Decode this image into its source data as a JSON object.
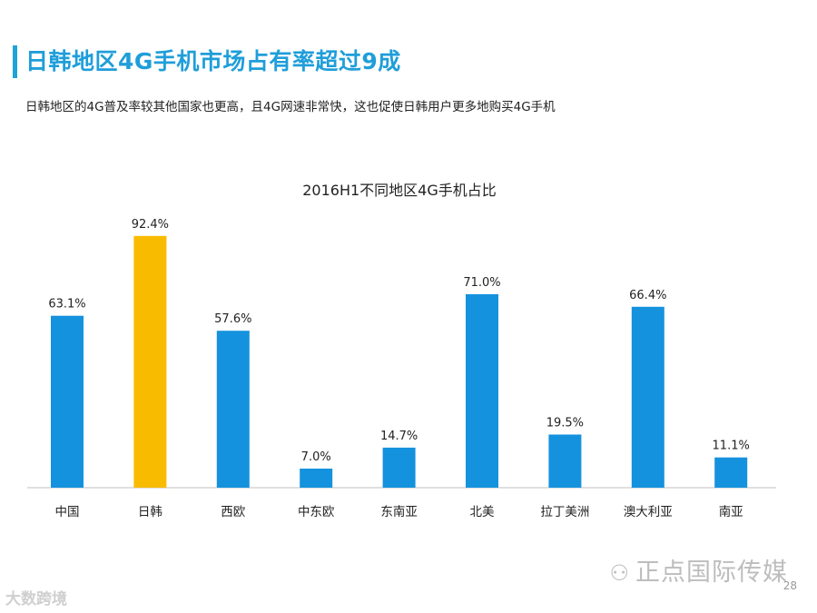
{
  "header": {
    "title": "日韩地区4G手机市场占有率超过9成",
    "subtitle": "日韩地区的4G普及率较其他国家也更高，且4G网速非常快，这也促使日韩用户更多地购买4G手机"
  },
  "chart_data": {
    "type": "bar",
    "title": "2016H1不同地区4G手机占比",
    "categories": [
      "中国",
      "日韩",
      "西欧",
      "中东欧",
      "东南亚",
      "北美",
      "拉丁美洲",
      "澳大利亚",
      "南亚"
    ],
    "values": [
      63.1,
      92.4,
      57.6,
      7.0,
      14.7,
      71.0,
      19.5,
      66.4,
      11.1
    ],
    "value_labels": [
      "63.1%",
      "92.4%",
      "57.6%",
      "7.0%",
      "14.7%",
      "71.0%",
      "19.5%",
      "66.4%",
      "11.1%"
    ],
    "highlight_index": 1,
    "ylim": [
      0,
      100
    ],
    "xlabel": "",
    "ylabel": "",
    "grid": false,
    "colors": {
      "default": "#1592dd",
      "highlight": "#f9bb00",
      "axis": "#bfbfbf",
      "text": "#222222"
    }
  },
  "footer": {
    "watermark": "正点国际传媒",
    "watermark_icon": "wechat-icon",
    "page_number": "28",
    "corner_logo": "大数跨境"
  }
}
